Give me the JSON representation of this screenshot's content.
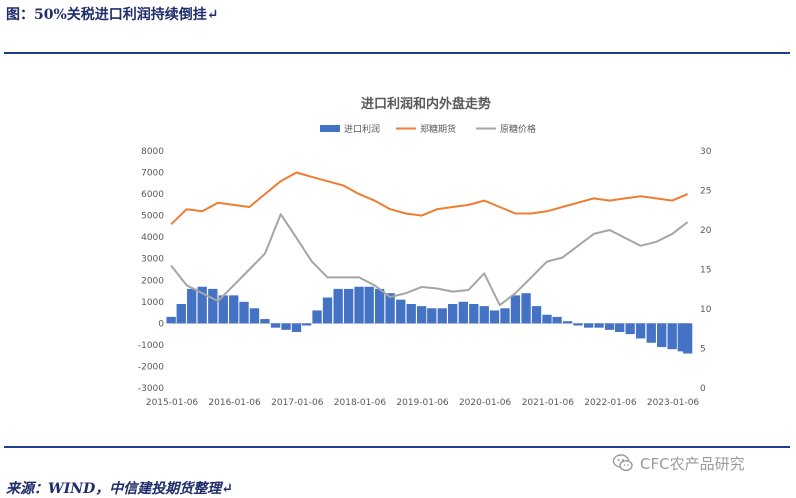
{
  "figure_title": "图：50%关税进口利润持续倒挂↵",
  "source_note": "来源：WIND，中信建投期货整理↵",
  "watermark": "CFC农产品研究",
  "watermark_icon": "wechat-icon",
  "chart_data": {
    "type": "bar+line",
    "title": "进口利润和内外盘走势",
    "legend_position": "top-center",
    "grid": false,
    "x_tick_labels": [
      "2015-01-06",
      "2016-01-06",
      "2017-01-06",
      "2018-01-06",
      "2019-01-06",
      "2020-01-06",
      "2021-01-06",
      "2022-01-06",
      "2023-01-06"
    ],
    "x_range": [
      "2015-01-06",
      "2023-04-15"
    ],
    "y_left": {
      "ylim": [
        -3000,
        8000
      ],
      "ticks": [
        -3000,
        -2000,
        -1000,
        0,
        1000,
        2000,
        3000,
        4000,
        5000,
        6000,
        7000,
        8000
      ]
    },
    "y_right": {
      "ylim": [
        0,
        30
      ],
      "ticks": [
        0,
        5,
        10,
        15,
        20,
        25,
        30
      ]
    },
    "colors": {
      "import_profit": "#4472c4",
      "zhengzhou_sugar": "#ed7d31",
      "raw_sugar": "#a5a5a5"
    },
    "series": [
      {
        "name": "进口利润",
        "type": "bar",
        "axis": "left",
        "x": [
          "2015-01",
          "2015-03",
          "2015-05",
          "2015-07",
          "2015-09",
          "2015-11",
          "2016-01",
          "2016-03",
          "2016-05",
          "2016-07",
          "2016-09",
          "2016-11",
          "2017-01",
          "2017-03",
          "2017-05",
          "2017-07",
          "2017-09",
          "2017-11",
          "2018-01",
          "2018-03",
          "2018-05",
          "2018-07",
          "2018-09",
          "2018-11",
          "2019-01",
          "2019-03",
          "2019-05",
          "2019-07",
          "2019-09",
          "2019-11",
          "2020-01",
          "2020-03",
          "2020-05",
          "2020-07",
          "2020-09",
          "2020-11",
          "2021-01",
          "2021-03",
          "2021-05",
          "2021-07",
          "2021-09",
          "2021-11",
          "2022-01",
          "2022-03",
          "2022-05",
          "2022-07",
          "2022-09",
          "2022-11",
          "2023-01",
          "2023-03",
          "2023-04"
        ],
        "values": [
          300,
          900,
          1600,
          1700,
          1600,
          1300,
          1300,
          1000,
          700,
          200,
          -200,
          -300,
          -400,
          -100,
          600,
          1200,
          1600,
          1600,
          1700,
          1700,
          1600,
          1400,
          1100,
          900,
          800,
          700,
          700,
          900,
          1000,
          900,
          800,
          600,
          700,
          1300,
          1400,
          800,
          400,
          300,
          100,
          -100,
          -200,
          -200,
          -300,
          -400,
          -500,
          -700,
          -900,
          -1100,
          -1200,
          -1300,
          -1400
        ]
      },
      {
        "name": "郑糖期货",
        "type": "line",
        "axis": "left",
        "x": [
          "2015-01",
          "2015-04",
          "2015-07",
          "2015-10",
          "2016-01",
          "2016-04",
          "2016-07",
          "2016-10",
          "2017-01",
          "2017-04",
          "2017-07",
          "2017-10",
          "2018-01",
          "2018-04",
          "2018-07",
          "2018-10",
          "2019-01",
          "2019-04",
          "2019-07",
          "2019-10",
          "2020-01",
          "2020-04",
          "2020-07",
          "2020-10",
          "2021-01",
          "2021-04",
          "2021-07",
          "2021-10",
          "2022-01",
          "2022-04",
          "2022-07",
          "2022-10",
          "2023-01",
          "2023-04"
        ],
        "values": [
          4600,
          5300,
          5200,
          5600,
          5500,
          5400,
          6000,
          6600,
          7000,
          6800,
          6600,
          6400,
          6000,
          5700,
          5300,
          5100,
          5000,
          5300,
          5400,
          5500,
          5700,
          5400,
          5100,
          5100,
          5200,
          5400,
          5600,
          5800,
          5700,
          5800,
          5900,
          5800,
          5700,
          6000
        ]
      },
      {
        "name": "原糖价格",
        "type": "line",
        "axis": "right",
        "x": [
          "2015-01",
          "2015-04",
          "2015-07",
          "2015-10",
          "2016-01",
          "2016-04",
          "2016-07",
          "2016-10",
          "2017-01",
          "2017-04",
          "2017-07",
          "2017-10",
          "2018-01",
          "2018-04",
          "2018-07",
          "2018-10",
          "2019-01",
          "2019-04",
          "2019-07",
          "2019-10",
          "2020-01",
          "2020-04",
          "2020-07",
          "2020-10",
          "2021-01",
          "2021-04",
          "2021-07",
          "2021-10",
          "2022-01",
          "2022-04",
          "2022-07",
          "2022-10",
          "2023-01",
          "2023-04"
        ],
        "values": [
          15.5,
          13,
          12,
          11,
          13,
          15,
          17,
          22,
          19,
          16,
          14,
          14,
          14,
          13,
          11.5,
          12,
          12.8,
          12.6,
          12.2,
          12.4,
          14.5,
          10.5,
          12,
          14,
          16,
          16.5,
          18,
          19.5,
          20,
          19,
          18,
          18.5,
          19.5,
          21
        ]
      }
    ]
  }
}
